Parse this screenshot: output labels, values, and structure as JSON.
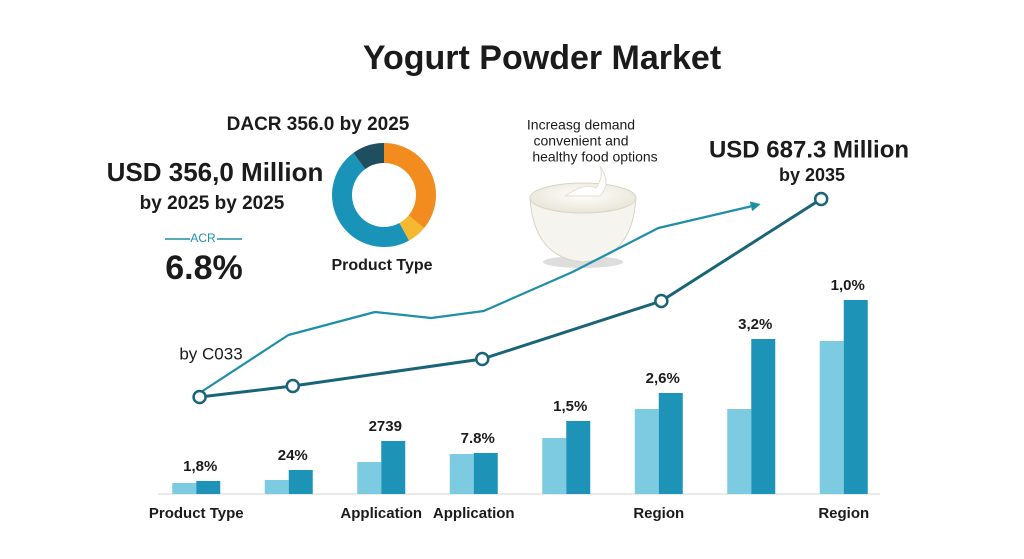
{
  "title": "Yogurt Powder Market",
  "annotations": {
    "dacr": "DACR 356.0  by 2025",
    "usd_start": "USD 356,0 Million",
    "usd_start_sub": "by 2025 by 2025",
    "acr_label": "ACR",
    "acr_value": "6.8%",
    "demand": [
      "Increasg demand",
      "convenient and",
      "healthy food options"
    ],
    "usd_end": "USD 687.3 Million",
    "usd_end_sub": "by 2035",
    "line_start": "by C033"
  },
  "chart_data": [
    {
      "type": "bar",
      "categories": [
        "Product Type",
        null,
        "Application",
        "Application",
        null,
        "Region",
        null,
        "Region"
      ],
      "bar_labels": [
        "1,8%",
        "24%",
        "2739",
        "7.8%",
        "1,5%",
        "2,6%",
        "3,2%",
        "1,0%"
      ],
      "series": [
        {
          "color": "#7ccbe0",
          "values": [
            11,
            14,
            32,
            40,
            56,
            85,
            85,
            153
          ]
        },
        {
          "color": "#1d93b8",
          "values": [
            13,
            24,
            53,
            41,
            73,
            101,
            155,
            194
          ]
        }
      ],
      "ylim": [
        0,
        300
      ]
    },
    {
      "type": "line",
      "xlim": [
        0,
        100
      ],
      "ylim": [
        0,
        300
      ],
      "series": [
        {
          "color": "#1f8fa8",
          "arrow": true,
          "markers": false,
          "x": [
            6.7,
            18.7,
            30.4,
            38,
            45.1,
            57.1,
            68.7,
            82
          ],
          "values": [
            101,
            159,
            182,
            176,
            183,
            222,
            266,
            289
          ]
        },
        {
          "color": "#1a6478",
          "arrow": false,
          "markers": true,
          "x": [
            6.7,
            19.3,
            44.9,
            69.1,
            90.7
          ],
          "values": [
            97,
            108,
            135,
            193,
            295
          ]
        }
      ]
    },
    {
      "type": "pie",
      "donut": true,
      "label": "Product Type",
      "values": [
        36,
        6,
        48,
        10
      ],
      "colors": [
        "#f28c1e",
        "#f5b82e",
        "#1a93b8",
        "#1f4e5f"
      ]
    }
  ]
}
